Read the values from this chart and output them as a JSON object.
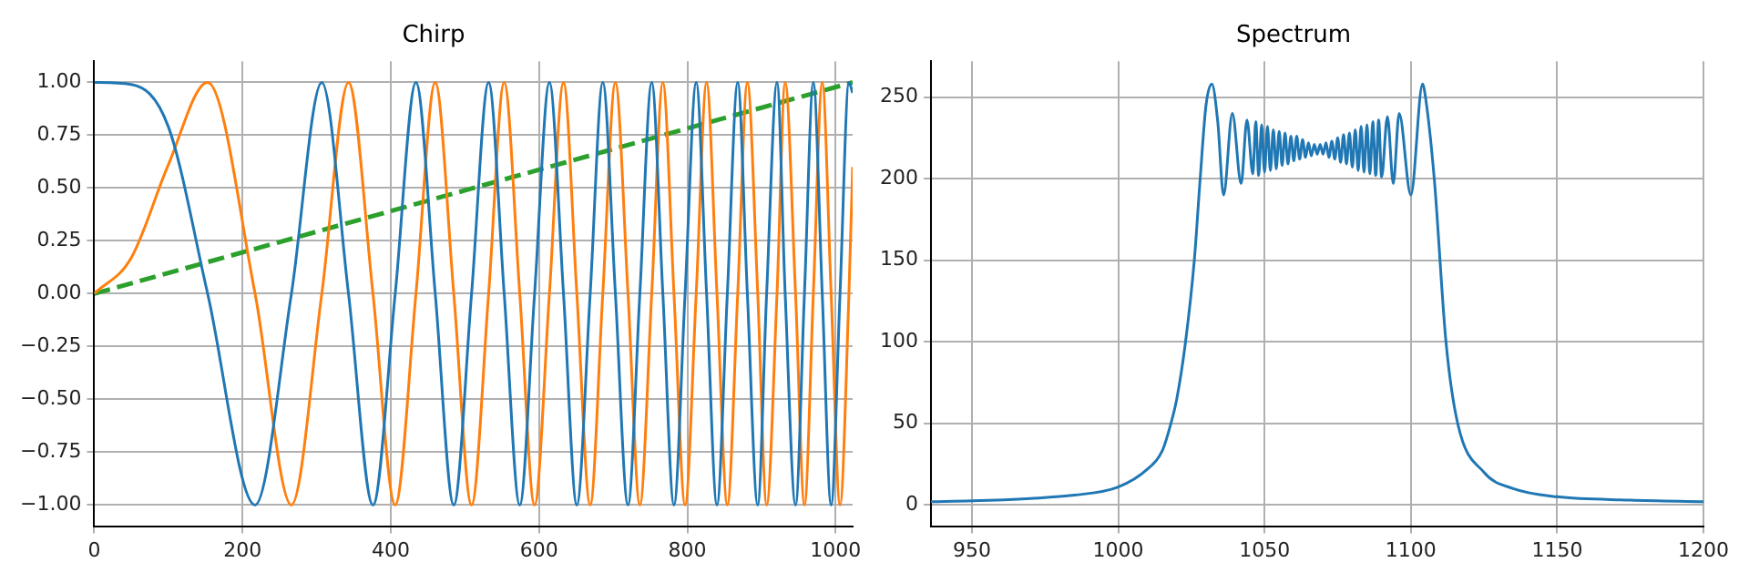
{
  "chart_data": [
    {
      "type": "line",
      "title": "Chirp",
      "grid": true,
      "legend": false,
      "marker": "none",
      "x": [
        0,
        50,
        100,
        153,
        217,
        266,
        307,
        343,
        376,
        406,
        434,
        460,
        485,
        509,
        532,
        553,
        574,
        594,
        614,
        633,
        651,
        669,
        686,
        703,
        720,
        736,
        752,
        767,
        782,
        797,
        812,
        826,
        840,
        854,
        868,
        881,
        895,
        907,
        921,
        932,
        946,
        958,
        970,
        982,
        994,
        1006,
        1018,
        1023
      ],
      "series": [
        {
          "color": "#1f77b4",
          "line_style": "solid",
          "values": [
            1,
            0.99,
            0.79,
            0,
            -1,
            0,
            1,
            0,
            -1,
            0,
            1,
            0,
            -1,
            0,
            1,
            0,
            -1,
            0,
            1,
            0,
            -1,
            0,
            1,
            0,
            -1,
            0,
            1,
            0,
            -1,
            0,
            1,
            0,
            -1,
            0,
            1,
            0,
            -1,
            0,
            1,
            0,
            -1,
            0,
            1,
            0,
            -1,
            0,
            1,
            0.95
          ]
        },
        {
          "color": "#ff7f0e",
          "line_style": "solid",
          "values": [
            0,
            0.17,
            0.61,
            1,
            0,
            -1,
            0,
            1,
            0,
            -1,
            0,
            1,
            0,
            -1,
            0,
            1,
            0,
            -1,
            0,
            1,
            0,
            -1,
            0,
            1,
            0,
            -1,
            0,
            1,
            0,
            -1,
            0,
            1,
            0,
            -1,
            0,
            1,
            0,
            -1,
            0,
            1,
            0,
            -1,
            0,
            1,
            0,
            -1,
            0,
            0.6
          ]
        },
        {
          "color": "#2ca02c",
          "line_style": "dashed",
          "x": [
            0,
            1023
          ],
          "values": [
            0,
            1
          ]
        }
      ],
      "xlim": [
        0,
        1023
      ],
      "xticks": [
        0,
        200,
        400,
        600,
        800,
        1000
      ],
      "ylim": [
        -1.1,
        1.1
      ],
      "yticks": [
        {
          "value": -1,
          "label": "−1.00"
        },
        {
          "value": -0.75,
          "label": "−0.75"
        },
        {
          "value": -0.5,
          "label": "−0.50"
        },
        {
          "value": -0.25,
          "label": "−0.25"
        },
        {
          "value": 0,
          "label": "0.00"
        },
        {
          "value": 0.25,
          "label": "0.25"
        },
        {
          "value": 0.5,
          "label": "0.50"
        },
        {
          "value": 0.75,
          "label": "0.75"
        },
        {
          "value": 1,
          "label": "1.00"
        }
      ]
    },
    {
      "type": "line",
      "title": "Spectrum",
      "grid": true,
      "legend": false,
      "marker": "none",
      "x": [
        936,
        950,
        970,
        985,
        1000,
        1010,
        1015,
        1018,
        1020,
        1023,
        1026,
        1028,
        1030,
        1032,
        1034,
        1036,
        1039,
        1042,
        1044,
        1046,
        1047,
        1048,
        1049,
        1050,
        1051,
        1052,
        1053,
        1054,
        1055,
        1056,
        1057,
        1058,
        1059,
        1060,
        1061,
        1062,
        1063,
        1064,
        1065,
        1066,
        1067,
        1068,
        1069,
        1070,
        1071,
        1072,
        1073,
        1074,
        1075,
        1076,
        1077,
        1078,
        1079,
        1080,
        1081,
        1082,
        1083,
        1084,
        1085,
        1086,
        1087,
        1088,
        1089,
        1090,
        1092,
        1094,
        1096,
        1100,
        1104,
        1105,
        1108,
        1112,
        1116,
        1125,
        1135,
        1150,
        1175,
        1200
      ],
      "series": [
        {
          "color": "#1f77b4",
          "line_style": "solid",
          "values": [
            2,
            2.5,
            4,
            6,
            11,
            22,
            33,
            50,
            65,
            100,
            150,
            200,
            245,
            258,
            235,
            190,
            240,
            197,
            236,
            203,
            235,
            202,
            233,
            204,
            232,
            205,
            230,
            206,
            229,
            208,
            228,
            209,
            226,
            211,
            226,
            212,
            224,
            213,
            222,
            214,
            221,
            215,
            221,
            215,
            222,
            213,
            223,
            212,
            225,
            210,
            227,
            209,
            228,
            207,
            230,
            205,
            232,
            204,
            233,
            203,
            235,
            202,
            236,
            201,
            238,
            197,
            240,
            190,
            258,
            250,
            200,
            100,
            50,
            20,
            10,
            5,
            3,
            2
          ]
        }
      ],
      "xlim": [
        936,
        1200
      ],
      "xticks": [
        950,
        1000,
        1050,
        1100,
        1150,
        1200
      ],
      "ylim": [
        -13,
        272
      ],
      "yticks": [
        0,
        50,
        100,
        150,
        200,
        250
      ]
    }
  ]
}
